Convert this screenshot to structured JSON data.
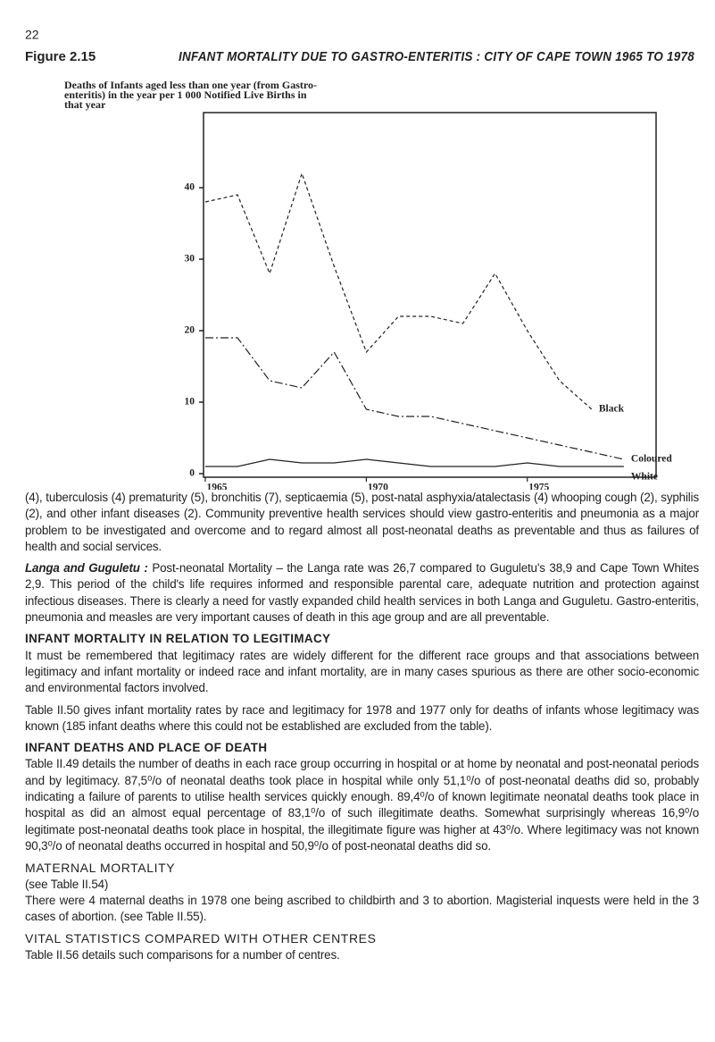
{
  "page_number": "22",
  "figure": {
    "label": "Figure 2.15",
    "title": "INFANT MORTALITY DUE TO GASTRO-ENTERITIS : CITY OF CAPE TOWN 1965 TO 1978"
  },
  "chart_data": {
    "type": "line",
    "title_lines": [
      "Deaths of Infants aged less than one year (from Gastro-",
      "enteritis) in the year per 1 000 Notified Live Births in",
      "that year"
    ],
    "x": [
      1965,
      1966,
      1967,
      1968,
      1969,
      1970,
      1971,
      1972,
      1973,
      1974,
      1975,
      1976,
      1977,
      1978
    ],
    "series": [
      {
        "name": "Black",
        "color": "#222",
        "values": [
          38,
          39,
          28,
          42,
          29,
          17,
          22,
          22,
          21,
          28,
          20,
          13,
          9,
          null
        ]
      },
      {
        "name": "Coloured",
        "color": "#222",
        "values": [
          19,
          19,
          13,
          12,
          17,
          9,
          8,
          8,
          7,
          6,
          5,
          4,
          3,
          2
        ]
      },
      {
        "name": "White",
        "color": "#222",
        "values": [
          1,
          1,
          2,
          1.5,
          1.5,
          2,
          1.5,
          1,
          1,
          1,
          1.5,
          1,
          1,
          1
        ]
      }
    ],
    "xlim": [
      1965,
      1979
    ],
    "xticks": [
      1965,
      1970,
      1975
    ],
    "ylim": [
      0,
      50
    ],
    "yticks": [
      0,
      10,
      20,
      30,
      40
    ]
  },
  "body": {
    "paragraphs": [
      {
        "text": "(4), tuberculosis (4) prematurity (5), bronchitis (7), septicaemia (5), post-natal asphyxia/atalectasis (4) whooping cough (2), syphilis (2), and other infant diseases (2). Community preventive health services should view gastro-enteritis and pneumonia as a major problem to be investigated and overcome and to regard almost all post-neonatal deaths as preventable and thus as failures of health and social services."
      },
      {
        "lead": "Langa and Guguletu :",
        "text": "Post-neonatal Mortality – the Langa rate was 26,7 compared to Guguletu's 38,9 and Cape Town Whites 2,9. This period of the child's life requires informed and responsible parental care, adequate nutrition and protection against infectious diseases. There is clearly a need for vastly expanded child health services in both Langa and Guguletu. Gastro-enteritis, pneumonia and measles are very important causes of death in this age group and are all preventable."
      },
      {
        "heading": "INFANT MORTALITY IN RELATION TO LEGITIMACY"
      },
      {
        "text": "It must be remembered that legitimacy rates are widely different for the different race groups and that associations between legitimacy and infant mortality or indeed race and infant mortality, are in many cases spurious as there are other socio-economic and environmental factors involved."
      },
      {
        "text": "Table II.50 gives infant mortality rates by race and legitimacy for 1978 and 1977 only for deaths of infants whose legitimacy was known (185 infant deaths where this could not be established are excluded from the table)."
      },
      {
        "heading": "INFANT DEATHS AND PLACE OF DEATH"
      },
      {
        "text": "Table II.49 details the number of deaths in each race group occurring in hospital or at home by neonatal and post-neonatal periods and by legitimacy. 87,5⁰/o of neonatal deaths took place in hospital while only 51,1⁰/o of post-neonatal deaths did so, probably indicating a failure of parents to utilise health services quickly enough. 89,4⁰/o of known legitimate neonatal deaths took place in hospital as did an almost equal percentage of 83,1⁰/o of such illegitimate deaths. Somewhat surprisingly whereas 16,9⁰/o legitimate post-neonatal deaths took place in hospital, the illegitimate figure was higher at 43⁰/o. Where legitimacy was not known 90,3⁰/o of neonatal deaths occurred in hospital and 50,9⁰/o of post-neonatal deaths did so."
      },
      {
        "subheading": "MATERNAL MORTALITY"
      },
      {
        "text": "(see Table II.54)"
      },
      {
        "text": "There were 4 maternal deaths in 1978 one being ascribed to childbirth and 3 to abortion. Magisterial inquests were held in the 3 cases of abortion. (see Table II.55)."
      },
      {
        "subheading": "VITAL STATISTICS COMPARED WITH OTHER CENTRES"
      },
      {
        "text": "Table II.56 details such comparisons for a number of centres."
      }
    ]
  }
}
